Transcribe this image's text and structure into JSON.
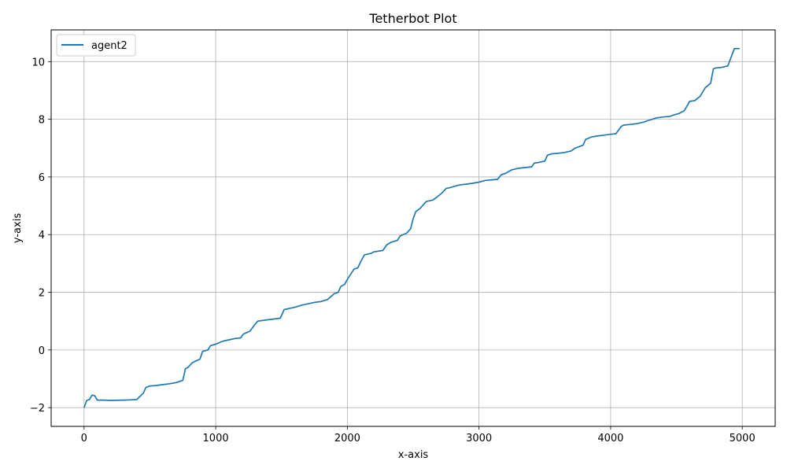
{
  "chart_data": {
    "type": "line",
    "title": "Tetherbot Plot",
    "xlabel": "x-axis",
    "ylabel": "y-axis",
    "xlim": [
      -250,
      5250
    ],
    "ylim": [
      -2.65,
      11.1
    ],
    "xticks": [
      0,
      1000,
      2000,
      3000,
      4000,
      5000
    ],
    "yticks": [
      -2,
      0,
      2,
      4,
      6,
      8,
      10
    ],
    "xtick_labels": [
      "0",
      "1000",
      "2000",
      "3000",
      "4000",
      "5000"
    ],
    "ytick_labels": [
      "−2",
      "0",
      "2",
      "4",
      "6",
      "8",
      "10"
    ],
    "grid": true,
    "legend_position": "top-left",
    "line_color": "#1f77b4",
    "series": [
      {
        "name": "agent2",
        "x": [
          0,
          20,
          40,
          60,
          80,
          100,
          150,
          200,
          300,
          350,
          400,
          450,
          470,
          500,
          550,
          600,
          650,
          700,
          750,
          770,
          790,
          820,
          850,
          880,
          900,
          940,
          960,
          1000,
          1040,
          1060,
          1100,
          1150,
          1190,
          1210,
          1260,
          1300,
          1320,
          1400,
          1490,
          1520,
          1550,
          1600,
          1650,
          1700,
          1750,
          1800,
          1850,
          1900,
          1930,
          1950,
          1980,
          2000,
          2050,
          2080,
          2100,
          2130,
          2180,
          2200,
          2270,
          2300,
          2330,
          2380,
          2400,
          2450,
          2480,
          2500,
          2520,
          2550,
          2600,
          2650,
          2680,
          2720,
          2750,
          2770,
          2850,
          2900,
          2950,
          3000,
          3050,
          3100,
          3140,
          3170,
          3200,
          3250,
          3300,
          3400,
          3420,
          3450,
          3500,
          3520,
          3550,
          3600,
          3650,
          3700,
          3730,
          3760,
          3790,
          3810,
          3850,
          3870,
          3900,
          3950,
          4000,
          4040,
          4080,
          4100,
          4150,
          4200,
          4250,
          4280,
          4350,
          4400,
          4450,
          4480,
          4520,
          4560,
          4600,
          4640,
          4680,
          4720,
          4760,
          4780,
          4800,
          4840,
          4890,
          4940,
          4980
        ],
        "y": [
          -2.0,
          -1.75,
          -1.72,
          -1.57,
          -1.58,
          -1.74,
          -1.74,
          -1.75,
          -1.74,
          -1.73,
          -1.72,
          -1.5,
          -1.3,
          -1.25,
          -1.23,
          -1.2,
          -1.17,
          -1.13,
          -1.05,
          -0.65,
          -0.6,
          -0.45,
          -0.38,
          -0.32,
          -0.05,
          0.0,
          0.15,
          0.2,
          0.28,
          0.31,
          0.35,
          0.4,
          0.42,
          0.55,
          0.65,
          0.9,
          1.0,
          1.05,
          1.1,
          1.4,
          1.43,
          1.48,
          1.55,
          1.6,
          1.65,
          1.68,
          1.75,
          1.95,
          2.0,
          2.2,
          2.28,
          2.45,
          2.8,
          2.85,
          3.05,
          3.3,
          3.35,
          3.4,
          3.45,
          3.65,
          3.73,
          3.8,
          3.95,
          4.05,
          4.2,
          4.55,
          4.8,
          4.9,
          5.15,
          5.2,
          5.3,
          5.45,
          5.6,
          5.62,
          5.72,
          5.75,
          5.78,
          5.82,
          5.88,
          5.9,
          5.92,
          6.08,
          6.12,
          6.25,
          6.3,
          6.35,
          6.48,
          6.5,
          6.55,
          6.75,
          6.8,
          6.82,
          6.85,
          6.9,
          7.0,
          7.05,
          7.1,
          7.3,
          7.38,
          7.4,
          7.42,
          7.45,
          7.48,
          7.5,
          7.75,
          7.8,
          7.82,
          7.85,
          7.9,
          7.95,
          8.05,
          8.08,
          8.1,
          8.15,
          8.2,
          8.3,
          8.62,
          8.65,
          8.8,
          9.1,
          9.25,
          9.75,
          9.78,
          9.8,
          9.85,
          10.45,
          10.45
        ]
      }
    ]
  }
}
